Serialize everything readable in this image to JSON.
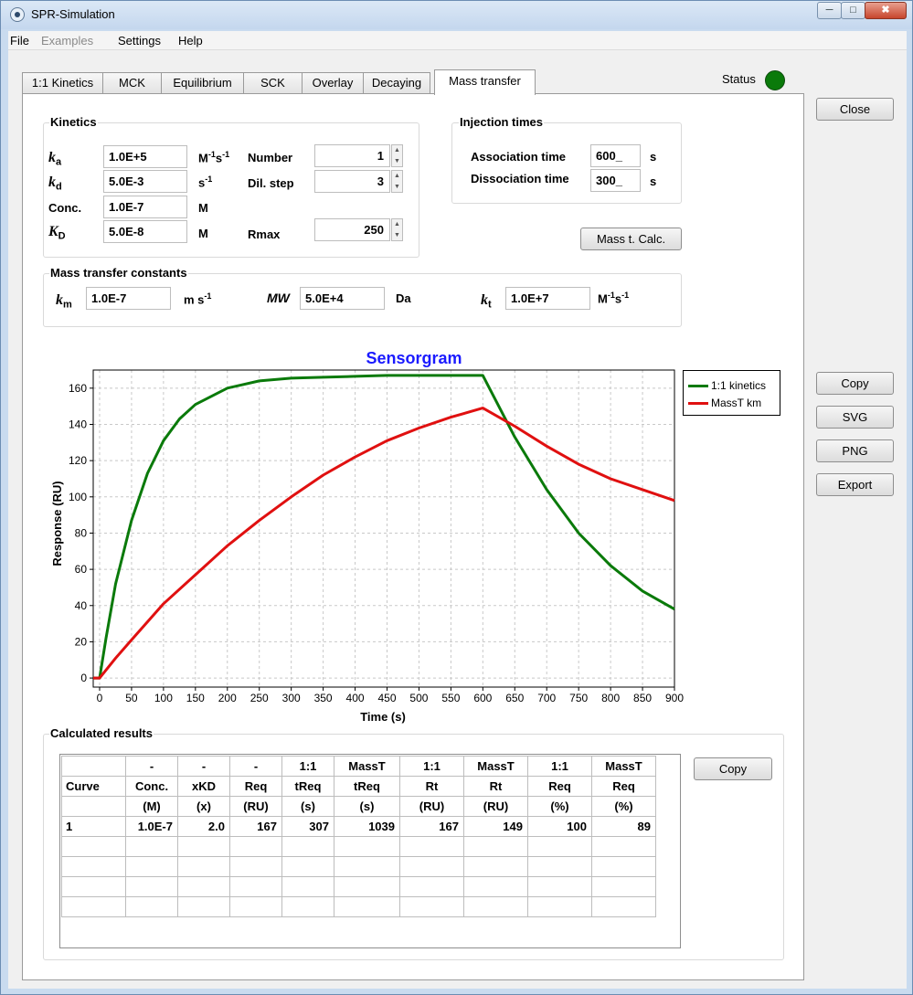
{
  "window": {
    "title": "SPR-Simulation",
    "minimize_icon": "minimize-icon",
    "maximize_icon": "maximize-icon",
    "close_icon": "close-icon"
  },
  "menu": [
    "File",
    "Examples",
    "Settings",
    "Help"
  ],
  "tabs": [
    "1:1 Kinetics",
    "MCK",
    "Equilibrium",
    "SCK",
    "Overlay",
    "Decaying",
    "Mass transfer"
  ],
  "active_tab": "Mass transfer",
  "status": {
    "label": "Status",
    "color": "#0a7a0a"
  },
  "kinetics": {
    "title": "Kinetics",
    "ka_value": "1.0E+5",
    "ka_unit_base": "M",
    "ka_unit_exp1": "-1",
    "ka_unit_s": "s",
    "ka_unit_exp2": "-1",
    "kd_value": "5.0E-3",
    "kd_unit_base": "s",
    "kd_unit_exp": "-1",
    "conc_label": "Conc.",
    "conc_value": "1.0E-7",
    "conc_unit": "M",
    "KD_value": "5.0E-8",
    "KD_unit": "M",
    "number_label": "Number",
    "number_value": "1",
    "dil_label": "Dil. step",
    "dil_value": "3",
    "rmax_label": "Rmax",
    "rmax_value": "250"
  },
  "injection": {
    "title": "Injection times",
    "assoc_label": "Association time",
    "assoc_value": "600_",
    "assoc_unit": "s",
    "dissoc_label": "Dissociation time",
    "dissoc_value": "300_",
    "dissoc_unit": "s"
  },
  "mass_calc_button": "Mass t. Calc.",
  "mass_transfer": {
    "title": "Mass transfer constants",
    "km_value": "1.0E-7",
    "km_unit": "m s",
    "km_unit_exp": "-1",
    "mw_label": "MW",
    "mw_value": "5.0E+4",
    "mw_unit": "Da",
    "kt_value": "1.0E+7",
    "kt_unit_base": "M",
    "kt_unit_exp1": "-1",
    "kt_unit_s": "s",
    "kt_unit_exp2": "-1"
  },
  "side_buttons": {
    "close": "Close",
    "copy": "Copy",
    "svg": "SVG",
    "png": "PNG",
    "export": "Export"
  },
  "chart_data": {
    "type": "line",
    "title": "Sensorgram",
    "xlabel": "Time (s)",
    "ylabel": "Response (RU)",
    "xlim": [
      -10,
      900
    ],
    "ylim": [
      -5,
      170
    ],
    "xticks": [
      0,
      50,
      100,
      150,
      200,
      250,
      300,
      350,
      400,
      450,
      500,
      550,
      600,
      650,
      700,
      750,
      800,
      850,
      900
    ],
    "yticks": [
      0,
      20,
      40,
      60,
      80,
      100,
      120,
      140,
      160
    ],
    "grid": true,
    "legend_position": "right",
    "title_color": "#1a1aff",
    "series": [
      {
        "name": "1:1 kinetics",
        "color": "#0a7a0a",
        "x": [
          -10,
          0,
          10,
          25,
          50,
          75,
          100,
          125,
          150,
          200,
          250,
          300,
          350,
          400,
          450,
          500,
          550,
          600,
          650,
          700,
          750,
          800,
          850,
          900
        ],
        "y": [
          0,
          0,
          22,
          52,
          87,
          113,
          131,
          143,
          151,
          160,
          164,
          165.5,
          166,
          166.5,
          167,
          167,
          167,
          167,
          133,
          104,
          80,
          62,
          48,
          38
        ]
      },
      {
        "name": "MassT km",
        "color": "#e01010",
        "x": [
          -10,
          0,
          25,
          50,
          100,
          150,
          200,
          250,
          300,
          350,
          400,
          450,
          500,
          550,
          600,
          650,
          700,
          750,
          800,
          850,
          900
        ],
        "y": [
          0,
          0,
          11,
          21,
          41,
          57,
          73,
          87,
          100,
          112,
          122,
          131,
          138,
          144,
          149,
          139,
          128,
          118,
          110,
          104,
          98
        ]
      }
    ]
  },
  "results": {
    "title": "Calculated results",
    "header_rows": [
      [
        "",
        "-",
        "-",
        "-",
        "1:1",
        "MassT",
        "1:1",
        "MassT",
        "1:1",
        "MassT"
      ],
      [
        "Curve",
        "Conc.",
        "xKD",
        "Req",
        "tReq",
        "tReq",
        "Rt",
        "Rt",
        "Req",
        "Req"
      ],
      [
        "",
        "(M)",
        "(x)",
        "(RU)",
        "(s)",
        "(s)",
        "(RU)",
        "(RU)",
        "(%)",
        "(%)"
      ]
    ],
    "rows": [
      [
        "1",
        "1.0E-7",
        "2.0",
        "167",
        "307",
        "1039",
        "167",
        "149",
        "100",
        "89"
      ]
    ],
    "copy_button": "Copy"
  }
}
